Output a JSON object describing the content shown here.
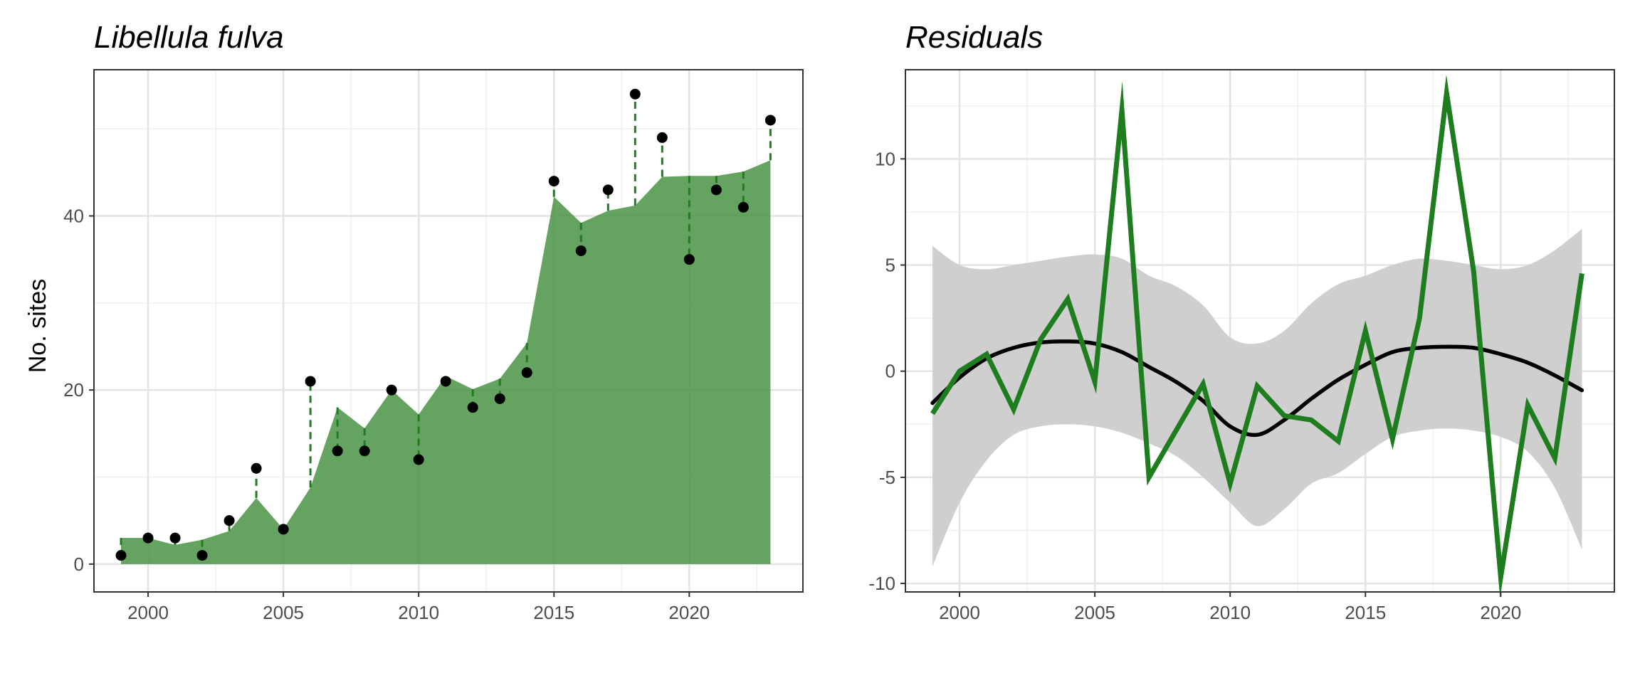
{
  "chart_data": [
    {
      "type": "area",
      "title": "Libellula fulva",
      "xlabel": "",
      "ylabel": "No. sites",
      "xlim": [
        1998,
        2024.2
      ],
      "ylim": [
        -3.2,
        56.8
      ],
      "x_ticks": [
        2000,
        2005,
        2010,
        2015,
        2020
      ],
      "x_tick_labels": [
        "2000",
        "2005",
        "2010",
        "2015",
        "2020"
      ],
      "y_ticks": [
        0,
        20,
        40
      ],
      "y_tick_labels": [
        "0",
        "20",
        "40"
      ],
      "grid": true,
      "colors": {
        "fitted": "#4a9444",
        "residual_line": "#1e7d1e",
        "observed": "#000000"
      },
      "x": [
        1999,
        2000,
        2001,
        2002,
        2003,
        2004,
        2005,
        2006,
        2007,
        2008,
        2009,
        2010,
        2011,
        2012,
        2013,
        2014,
        2015,
        2016,
        2017,
        2018,
        2019,
        2020,
        2021,
        2022,
        2023
      ],
      "series": [
        {
          "values": [
            3,
            3,
            2.2,
            2.8,
            3.8,
            7.6,
            4,
            8.8,
            18,
            15.6,
            20,
            17.2,
            21.6,
            20.1,
            21.3,
            25.4,
            42.2,
            39.2,
            40.6,
            41.2,
            44.5,
            44.6,
            44.6,
            45.1,
            46.4
          ]
        },
        {
          "values": [
            1,
            3,
            3,
            1,
            5,
            11,
            4,
            21,
            13,
            13,
            20,
            12,
            21,
            18,
            19,
            22,
            44,
            36,
            43,
            54,
            49,
            35,
            43,
            41,
            51
          ]
        }
      ]
    },
    {
      "type": "line",
      "title": "Residuals",
      "xlabel": "",
      "ylabel": "",
      "xlim": [
        1998,
        2024.2
      ],
      "ylim": [
        -10.4,
        14.2
      ],
      "x_ticks": [
        2000,
        2005,
        2010,
        2015,
        2020
      ],
      "x_tick_labels": [
        "2000",
        "2005",
        "2010",
        "2015",
        "2020"
      ],
      "y_ticks": [
        -10,
        -5,
        0,
        5,
        10
      ],
      "y_tick_labels": [
        "-10",
        "-5",
        "0",
        "5",
        "10"
      ],
      "grid": true,
      "colors": {
        "residual": "#1e7d1e",
        "smooth": "#000000",
        "ribbon": "#cccccc"
      },
      "x": [
        1999,
        2000,
        2001,
        2002,
        2003,
        2004,
        2005,
        2006,
        2007,
        2008,
        2009,
        2010,
        2011,
        2012,
        2013,
        2014,
        2015,
        2016,
        2017,
        2018,
        2019,
        2020,
        2021,
        2022,
        2023
      ],
      "series": [
        {
          "values": [
            -2,
            0,
            0.8,
            -1.8,
            1.5,
            3.4,
            -0.5,
            12.3,
            -5,
            -2.8,
            -0.6,
            -5.3,
            -0.7,
            -2.1,
            -2.3,
            -3.3,
            1.9,
            -3.2,
            2.5,
            13.1,
            4.7,
            -9.7,
            -1.6,
            -4.1,
            4.6
          ]
        },
        {
          "values": [
            -1.5,
            -0.3,
            0.6,
            1.1,
            1.35,
            1.4,
            1.3,
            0.9,
            0.2,
            -0.5,
            -1.4,
            -2.6,
            -3,
            -2.3,
            -1.3,
            -0.4,
            0.3,
            0.9,
            1.1,
            1.15,
            1.1,
            0.8,
            0.4,
            -0.2,
            -0.9
          ]
        },
        {
          "values": [
            5.9,
            5,
            4.8,
            5.0,
            5.2,
            5.4,
            5.5,
            5.3,
            4.5,
            4.0,
            3.1,
            1.6,
            1.3,
            1.9,
            3.2,
            4.1,
            4.5,
            5.0,
            5.3,
            5.2,
            5.0,
            4.8,
            5.0,
            5.7,
            6.7
          ]
        },
        {
          "values": [
            -9.2,
            -6.2,
            -4.2,
            -3.0,
            -2.6,
            -2.5,
            -2.6,
            -2.9,
            -3.4,
            -4.0,
            -5.0,
            -6.2,
            -7.3,
            -6.5,
            -5.3,
            -4.8,
            -3.9,
            -3.1,
            -2.8,
            -2.7,
            -2.8,
            -3.1,
            -3.8,
            -5.5,
            -8.4
          ]
        }
      ]
    }
  ]
}
